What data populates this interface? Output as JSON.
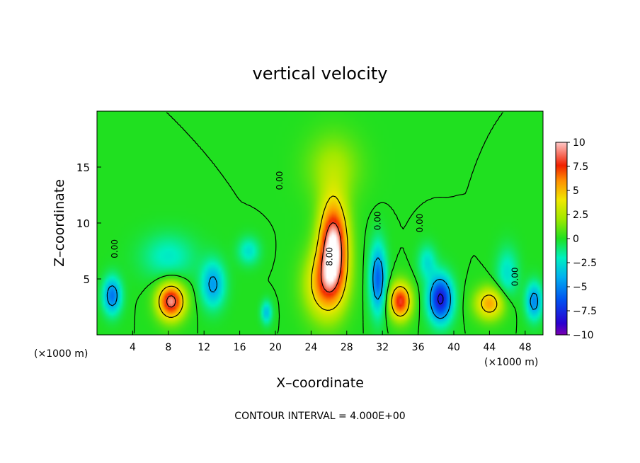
{
  "chart_data": {
    "type": "heatmap",
    "title": "vertical velocity",
    "xlabel": "X–coordinate",
    "ylabel": "Z–coordinate",
    "x_unit": "(×1000 m)",
    "x_unit_right": "(×1000 m)",
    "xlim": [
      0,
      50
    ],
    "ylim": [
      0,
      20
    ],
    "x_ticks": [
      4,
      8,
      12,
      16,
      20,
      24,
      28,
      32,
      36,
      40,
      44,
      48
    ],
    "y_ticks": [
      5,
      10,
      15
    ],
    "colorbar": {
      "range": [
        -10,
        10
      ],
      "tick_labels": [
        "10",
        "7.5",
        "5",
        "2.5",
        "0",
        "−2.5",
        "−5",
        "−7.5",
        "−10"
      ],
      "tick_values": [
        10,
        7.5,
        5,
        2.5,
        0,
        -2.5,
        -5,
        -7.5,
        -10
      ]
    },
    "contour_labels": [
      {
        "text": "0.00",
        "x": 2.3,
        "z": 7.7
      },
      {
        "text": "0.00",
        "x": 20.8,
        "z": 13.8
      },
      {
        "text": "8.00",
        "x": 26.4,
        "z": 7.0
      },
      {
        "text": "0.00",
        "x": 31.8,
        "z": 10.2
      },
      {
        "text": "0.00",
        "x": 36.5,
        "z": 10.0
      },
      {
        "text": "0.00",
        "x": 47.2,
        "z": 5.2
      }
    ],
    "footnote": "CONTOUR INTERVAL = 4.000E+00",
    "features": [
      {
        "x": 26.5,
        "z": 8.0,
        "value": 10.0,
        "sx": 1.6,
        "sz": 4.0
      },
      {
        "x": 25.5,
        "z": 4.5,
        "value": 5.5,
        "sx": 2.2,
        "sz": 3.0
      },
      {
        "x": 8.3,
        "z": 3.0,
        "value": 9.0,
        "sx": 1.5,
        "sz": 1.6
      },
      {
        "x": 34.0,
        "z": 3.0,
        "value": 8.0,
        "sx": 1.2,
        "sz": 1.6
      },
      {
        "x": 44.0,
        "z": 2.8,
        "value": 5.5,
        "sx": 1.6,
        "sz": 1.4
      },
      {
        "x": 26.5,
        "z": 15.0,
        "value": 2.2,
        "sx": 3.0,
        "sz": 3.0
      },
      {
        "x": 1.7,
        "z": 3.5,
        "value": -5.5,
        "sx": 1.0,
        "sz": 1.6
      },
      {
        "x": 13.0,
        "z": 4.5,
        "value": -4.5,
        "sx": 1.3,
        "sz": 2.0
      },
      {
        "x": 31.5,
        "z": 5.0,
        "value": -6.0,
        "sx": 0.9,
        "sz": 3.0
      },
      {
        "x": 38.5,
        "z": 3.2,
        "value": -8.5,
        "sx": 1.3,
        "sz": 2.0
      },
      {
        "x": 49.0,
        "z": 3.0,
        "value": -5.0,
        "sx": 0.9,
        "sz": 1.6
      },
      {
        "x": 19.0,
        "z": 2.0,
        "value": -3.5,
        "sx": 0.6,
        "sz": 1.0
      },
      {
        "x": 17.0,
        "z": 7.5,
        "value": -2.5,
        "sx": 1.2,
        "sz": 1.2
      },
      {
        "x": 37.0,
        "z": 6.5,
        "value": -2.5,
        "sx": 1.0,
        "sz": 1.5
      },
      {
        "x": 8.0,
        "z": 7.0,
        "value": -2.2,
        "sx": 3.0,
        "sz": 2.0
      },
      {
        "x": 46.0,
        "z": 5.5,
        "value": -2.5,
        "sx": 1.2,
        "sz": 2.2
      }
    ]
  }
}
